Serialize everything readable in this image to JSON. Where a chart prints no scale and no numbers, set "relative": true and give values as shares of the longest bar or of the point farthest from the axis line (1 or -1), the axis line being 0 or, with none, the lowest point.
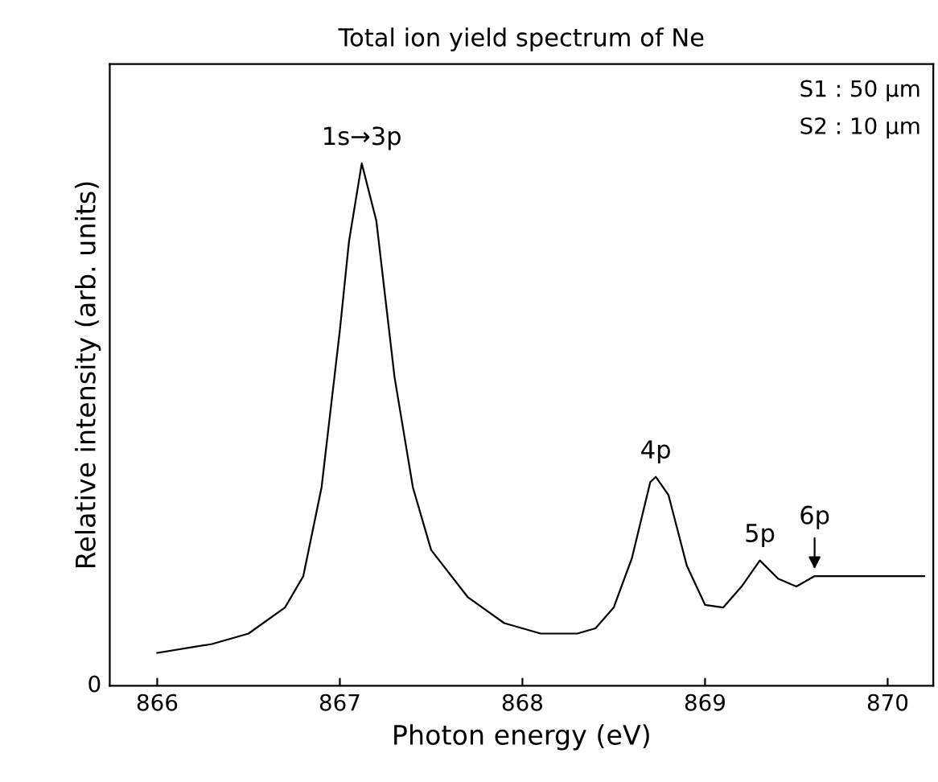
{
  "chart_data": {
    "type": "line",
    "title": "Total ion yield spectrum of Ne",
    "xlabel": "Photon energy (eV)",
    "ylabel": "Relative intensity (arb. units)",
    "relative": true,
    "x": [
      866.0,
      866.3,
      866.5,
      866.7,
      866.8,
      866.9,
      867.0,
      867.05,
      867.12,
      867.2,
      867.3,
      867.4,
      867.5,
      867.7,
      867.9,
      868.1,
      868.3,
      868.4,
      868.5,
      868.6,
      868.7,
      868.73,
      868.8,
      868.9,
      869.0,
      869.1,
      869.2,
      869.3,
      869.4,
      869.5,
      869.6,
      869.7,
      870.2
    ],
    "series": [
      {
        "color": "#000000",
        "values": [
          0.063,
          0.08,
          0.1,
          0.15,
          0.21,
          0.38,
          0.68,
          0.85,
          1.0,
          0.89,
          0.59,
          0.38,
          0.26,
          0.17,
          0.12,
          0.1,
          0.1,
          0.11,
          0.15,
          0.245,
          0.39,
          0.4,
          0.365,
          0.23,
          0.155,
          0.15,
          0.19,
          0.24,
          0.205,
          0.19,
          0.21,
          0.21,
          0.21
        ]
      }
    ],
    "xlim": [
      865.74,
      870.25
    ],
    "xticks": [
      866,
      867,
      868,
      869,
      870
    ],
    "grid": false,
    "legend": false,
    "marker": "none",
    "line_style": "solid",
    "annotations": [
      "0",
      {
        "text": "1s→3p",
        "x": 867.12,
        "y": 1.0
      },
      {
        "text": "4p",
        "x": 868.73,
        "y": 0.4
      },
      {
        "text": "5p",
        "x": 869.3,
        "y": 0.24
      },
      {
        "text": "6p",
        "x": 869.6,
        "y": 0.21
      },
      "S1 : 50 μm",
      "S2 : 10 μm"
    ]
  }
}
